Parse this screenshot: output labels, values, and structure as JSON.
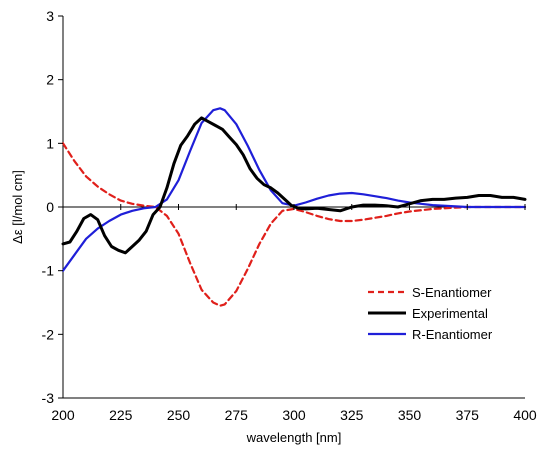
{
  "chart_data": {
    "type": "line",
    "title": "",
    "xlabel": "wavelength  [nm]",
    "ylabel": "Δε [l/mol cm]",
    "xlim": [
      200,
      400
    ],
    "ylim": [
      -3,
      3
    ],
    "grid": false,
    "legend_position": "bottom-right",
    "x_ticks": [
      "200",
      "225",
      "250",
      "275",
      "300",
      "325",
      "350",
      "375",
      "400"
    ],
    "y_ticks": [
      "3",
      "2",
      "1",
      "0",
      "-1",
      "-2",
      "-3"
    ],
    "series": [
      {
        "name": "S-Enantiomer",
        "style": "dashed",
        "color": "#e0201b",
        "x": [
          200,
          205,
          210,
          215,
          220,
          225,
          230,
          235,
          240,
          245,
          250,
          255,
          260,
          265,
          268,
          270,
          275,
          280,
          285,
          290,
          295,
          300,
          305,
          310,
          315,
          320,
          325,
          330,
          335,
          340,
          345,
          350,
          355,
          360,
          365,
          370,
          375,
          380,
          385,
          390,
          395,
          400
        ],
        "y": [
          1.0,
          0.72,
          0.48,
          0.32,
          0.2,
          0.1,
          0.05,
          0.02,
          0.0,
          -0.14,
          -0.42,
          -0.88,
          -1.3,
          -1.5,
          -1.55,
          -1.53,
          -1.32,
          -0.97,
          -0.58,
          -0.26,
          -0.06,
          -0.03,
          -0.08,
          -0.14,
          -0.19,
          -0.22,
          -0.22,
          -0.2,
          -0.17,
          -0.14,
          -0.1,
          -0.07,
          -0.05,
          -0.03,
          -0.02,
          -0.01,
          0.0,
          0.0,
          0.0,
          0.0,
          0.0,
          0.0
        ]
      },
      {
        "name": "Experimental",
        "style": "solid",
        "color": "#000000",
        "x": [
          200,
          203,
          206,
          209,
          212,
          215,
          218,
          221,
          224,
          227,
          230,
          233,
          236,
          239,
          242,
          245,
          248,
          251,
          254,
          257,
          260,
          263,
          266,
          269,
          272,
          275,
          278,
          281,
          284,
          287,
          290,
          293,
          296,
          299,
          302,
          305,
          310,
          315,
          320,
          325,
          330,
          335,
          340,
          345,
          350,
          355,
          360,
          365,
          370,
          375,
          380,
          385,
          390,
          395,
          400
        ],
        "y": [
          -0.58,
          -0.55,
          -0.38,
          -0.18,
          -0.12,
          -0.2,
          -0.45,
          -0.62,
          -0.68,
          -0.72,
          -0.62,
          -0.52,
          -0.38,
          -0.12,
          0.0,
          0.3,
          0.68,
          0.97,
          1.12,
          1.3,
          1.4,
          1.34,
          1.28,
          1.22,
          1.1,
          0.98,
          0.82,
          0.6,
          0.45,
          0.35,
          0.3,
          0.22,
          0.12,
          0.02,
          -0.02,
          -0.03,
          -0.02,
          -0.04,
          -0.06,
          0.0,
          0.03,
          0.03,
          0.02,
          0.0,
          0.05,
          0.1,
          0.12,
          0.12,
          0.14,
          0.15,
          0.18,
          0.18,
          0.15,
          0.15,
          0.12
        ]
      },
      {
        "name": "R-Enantiomer",
        "style": "solid",
        "color": "#1f1fd8",
        "x": [
          200,
          205,
          210,
          215,
          220,
          225,
          230,
          235,
          240,
          245,
          250,
          255,
          260,
          265,
          268,
          270,
          275,
          280,
          285,
          290,
          295,
          300,
          305,
          310,
          315,
          320,
          325,
          330,
          335,
          340,
          345,
          350,
          355,
          360,
          365,
          370,
          375,
          380,
          385,
          390,
          395,
          400
        ],
        "y": [
          -1.0,
          -0.75,
          -0.5,
          -0.34,
          -0.22,
          -0.12,
          -0.06,
          -0.02,
          0.0,
          0.12,
          0.42,
          0.88,
          1.32,
          1.52,
          1.55,
          1.52,
          1.3,
          0.96,
          0.58,
          0.26,
          0.06,
          0.02,
          0.07,
          0.13,
          0.18,
          0.21,
          0.22,
          0.2,
          0.17,
          0.14,
          0.1,
          0.07,
          0.05,
          0.03,
          0.02,
          0.01,
          0.0,
          0.0,
          0.0,
          0.0,
          0.0,
          0.0
        ]
      }
    ]
  }
}
